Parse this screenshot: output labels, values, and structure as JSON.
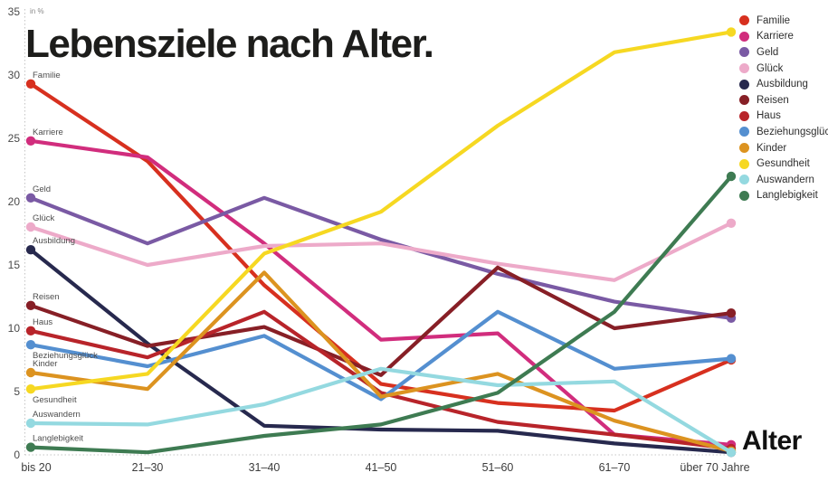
{
  "title": "Lebensziele nach Alter.",
  "y_axis_unit": "in %",
  "x_axis_title": "Alter",
  "chart_data": {
    "type": "line",
    "categories": [
      "bis 20",
      "21–30",
      "31–40",
      "41–50",
      "51–60",
      "61–70",
      "über 70 Jahre"
    ],
    "yticks": [
      0,
      5,
      10,
      15,
      20,
      25,
      30,
      35
    ],
    "ylim": [
      0,
      35
    ],
    "xlabel": "Alter",
    "ylabel": "in %",
    "grid": "dotted axes only",
    "legend_position": "top-right",
    "series": [
      {
        "name": "Familie",
        "color": "#d7301f",
        "label_pos": "above",
        "values": [
          29.3,
          23.2,
          13.4,
          5.6,
          4.1,
          3.5,
          7.5
        ]
      },
      {
        "name": "Karriere",
        "color": "#d12d7d",
        "label_pos": "above",
        "values": [
          24.8,
          23.5,
          16.7,
          9.1,
          9.6,
          1.6,
          0.8
        ]
      },
      {
        "name": "Geld",
        "color": "#7a5aa4",
        "label_pos": "above",
        "values": [
          20.3,
          16.7,
          20.3,
          17.0,
          14.3,
          12.1,
          10.8
        ]
      },
      {
        "name": "Glück",
        "color": "#edaac9",
        "label_pos": "above",
        "values": [
          18.0,
          15.0,
          16.5,
          16.7,
          15.1,
          13.8,
          18.3
        ]
      },
      {
        "name": "Ausbildung",
        "color": "#27294e",
        "label_pos": "above",
        "values": [
          16.2,
          8.8,
          2.3,
          2.0,
          1.9,
          0.9,
          0.2
        ]
      },
      {
        "name": "Reisen",
        "color": "#871f26",
        "label_pos": "above",
        "values": [
          11.8,
          8.6,
          10.1,
          6.3,
          14.8,
          10.0,
          11.2
        ]
      },
      {
        "name": "Haus",
        "color": "#b8242a",
        "label_pos": "above",
        "values": [
          9.8,
          7.7,
          11.3,
          4.9,
          2.6,
          1.6,
          0.5
        ]
      },
      {
        "name": "Beziehungsglück",
        "color": "#548fd0",
        "label_pos": "below",
        "values": [
          8.7,
          7.0,
          9.4,
          4.4,
          11.3,
          6.8,
          7.6
        ]
      },
      {
        "name": "Kinder",
        "color": "#dc9320",
        "label_pos": "above",
        "values": [
          6.5,
          5.2,
          14.4,
          4.6,
          6.4,
          2.7,
          0.3
        ]
      },
      {
        "name": "Gesundheit",
        "color": "#f6d822",
        "label_pos": "below",
        "values": [
          5.2,
          6.4,
          15.9,
          19.2,
          26.0,
          31.8,
          33.4
        ]
      },
      {
        "name": "Auswandern",
        "color": "#94d9e0",
        "label_pos": "above",
        "values": [
          2.5,
          2.4,
          4.0,
          6.8,
          5.5,
          5.8,
          0.2
        ]
      },
      {
        "name": "Langlebigkeit",
        "color": "#3e7b52",
        "label_pos": "above",
        "values": [
          0.6,
          0.2,
          1.5,
          2.4,
          4.9,
          11.3,
          22.0
        ]
      }
    ]
  }
}
